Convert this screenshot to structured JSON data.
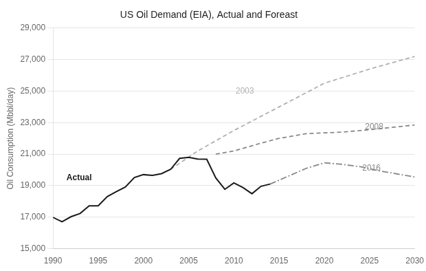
{
  "chart_data": {
    "type": "line",
    "title": "US Oil Demand (EIA), Actual and Foreast",
    "ylabel": "Oil Consumption (Mbbl/day)",
    "xlim": [
      1990,
      2030
    ],
    "xticks": [
      1990,
      1995,
      2000,
      2005,
      2010,
      2015,
      2020,
      2025,
      2030
    ],
    "ylim": [
      15000,
      29000
    ],
    "yticks": [
      {
        "value": 15000,
        "label": "15,000"
      },
      {
        "value": 17000,
        "label": "17,000"
      },
      {
        "value": 19000,
        "label": "19,000"
      },
      {
        "value": 21000,
        "label": "21,000"
      },
      {
        "value": 23000,
        "label": "23,000"
      },
      {
        "value": 25000,
        "label": "25,000"
      },
      {
        "value": 27000,
        "label": "27,000"
      },
      {
        "value": 29000,
        "label": "29,000"
      }
    ],
    "grid": true,
    "series": [
      {
        "name": "Actual",
        "color": "#1a1a1a",
        "line_style": "solid",
        "x": [
          1990,
          1991,
          1992,
          1993,
          1994,
          1995,
          1996,
          1997,
          1998,
          1999,
          2000,
          2001,
          2002,
          2003,
          2004,
          2005,
          2006,
          2007,
          2008,
          2009,
          2010,
          2011,
          2012,
          2013,
          2014
        ],
        "values": [
          16988,
          16714,
          17033,
          17237,
          17718,
          17724,
          18309,
          18621,
          18917,
          19517,
          19701,
          19649,
          19761,
          20033,
          20731,
          20802,
          20687,
          20680,
          19490,
          18771,
          19180,
          18882,
          18490,
          18961,
          19100
        ]
      },
      {
        "name": "2003",
        "color": "#b0b0b0",
        "line_style": "dashed",
        "x": [
          2003,
          2006,
          2010,
          2015,
          2020,
          2025,
          2030
        ],
        "values": [
          20033,
          21200,
          22500,
          24000,
          25500,
          26400,
          27200
        ]
      },
      {
        "name": "2008",
        "color": "#888888",
        "line_style": "dashed",
        "x": [
          2008,
          2010,
          2013,
          2015,
          2018,
          2020,
          2022,
          2025,
          2030
        ],
        "values": [
          21000,
          21200,
          21700,
          22000,
          22300,
          22350,
          22400,
          22550,
          22850
        ]
      },
      {
        "name": "2016",
        "color": "#888888",
        "line_style": "dashdot",
        "x": [
          2014,
          2016,
          2018,
          2020,
          2022,
          2024,
          2026,
          2028,
          2030
        ],
        "values": [
          19100,
          19600,
          20100,
          20450,
          20350,
          20200,
          19950,
          19750,
          19550
        ]
      }
    ],
    "annotations": [
      {
        "text": "Actual",
        "x": 1991.5,
        "y": 19500
      },
      {
        "text": "2003",
        "x": 2010.2,
        "y": 25000
      },
      {
        "text": "2008",
        "x": 2024.5,
        "y": 22700
      },
      {
        "text": "2016",
        "x": 2024.2,
        "y": 20100
      }
    ]
  }
}
